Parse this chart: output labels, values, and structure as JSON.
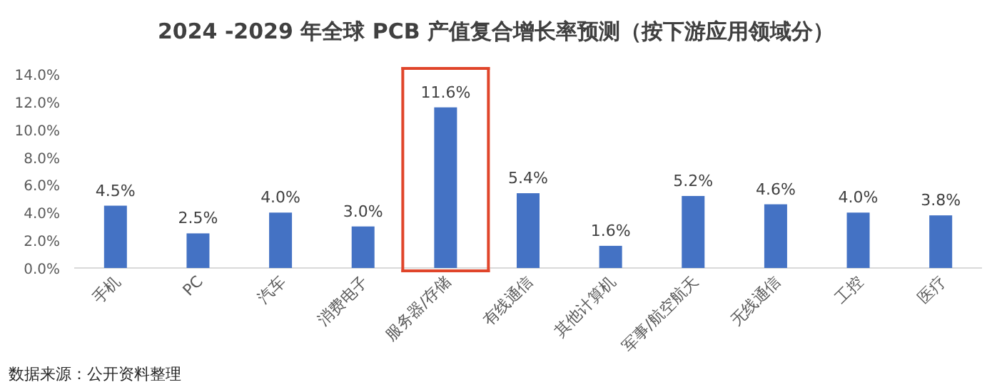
{
  "chart_data": {
    "type": "bar",
    "title": "2024 -2029 年全球 PCB 产值复合增长率预测（按下游应用领域分）",
    "categories": [
      "手机",
      "PC",
      "汽车",
      "消费电子",
      "服务器/存储",
      "有线通信",
      "其他计算机",
      "军事/航空航天",
      "无线通信",
      "工控",
      "医疗"
    ],
    "values": [
      4.5,
      2.5,
      4.0,
      3.0,
      11.6,
      5.4,
      1.6,
      5.2,
      4.6,
      4.0,
      3.8
    ],
    "value_labels": [
      "4.5%",
      "2.5%",
      "4.0%",
      "3.0%",
      "11.6%",
      "5.4%",
      "1.6%",
      "5.2%",
      "4.6%",
      "4.0%",
      "3.8%"
    ],
    "color": "#4472c4",
    "ylim": [
      0,
      14
    ],
    "yticks": [
      {
        "value": 0,
        "label": "0.0%"
      },
      {
        "value": 2,
        "label": "2.0%"
      },
      {
        "value": 4,
        "label": "4.0%"
      },
      {
        "value": 6,
        "label": "6.0%"
      },
      {
        "value": 8,
        "label": "8.0%"
      },
      {
        "value": 10,
        "label": "10.0%"
      },
      {
        "value": 12,
        "label": "12.0%"
      },
      {
        "value": 14,
        "label": "14.0%"
      }
    ],
    "annotations": [
      "数据来源：公开资料整理"
    ]
  }
}
